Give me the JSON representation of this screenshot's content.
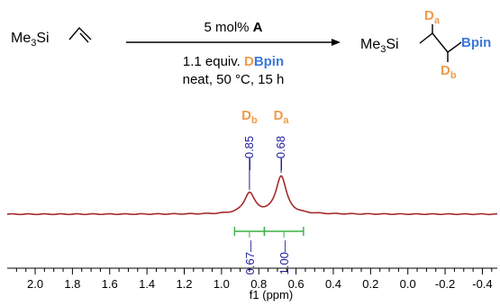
{
  "reaction": {
    "reactant": {
      "pre": "Me",
      "sub": "3",
      "post": "Si"
    },
    "conditions": {
      "line1_prefix": "5 mol% ",
      "line1_catalyst": "A",
      "line2_prefix": "1.1 equiv. ",
      "line2_d": "D",
      "line2_bpin": "Bpin",
      "line3": "neat, 50 °C, 15 h"
    },
    "product": {
      "pre": "Me",
      "sub": "3",
      "post": "Si",
      "bpin": "Bpin",
      "da_main": "D",
      "da_sub": "a",
      "db_main": "D",
      "db_sub": "b"
    }
  },
  "chart_data": {
    "type": "line",
    "title": "",
    "xlabel": "f1 (ppm)",
    "ylabel": "",
    "xlim": [
      2.15,
      -0.48
    ],
    "x_ticks": [
      "2.0",
      "1.8",
      "1.6",
      "1.4",
      "1.2",
      "1.0",
      "0.8",
      "0.6",
      "0.4",
      "0.2",
      "0.0",
      "-0.2",
      "-0.4"
    ],
    "peaks": [
      {
        "shift": 0.85,
        "shift_label": "0.85",
        "label_main": "D",
        "label_sub": "b",
        "height": 0.55,
        "width": 0.05
      },
      {
        "shift": 0.68,
        "shift_label": "0.68",
        "label_main": "D",
        "label_sub": "a",
        "height": 1.0,
        "width": 0.05
      }
    ],
    "integrals": [
      {
        "from": 0.93,
        "to": 0.77,
        "label": "0.67"
      },
      {
        "from": 0.77,
        "to": 0.56,
        "label": "1.00"
      }
    ],
    "colors": {
      "spectrum": "#a52a2a",
      "peak_label": "#1f1f9e",
      "integral_line": "#3cb043",
      "accent_orange": "#f09a4a",
      "accent_blue": "#3b78d8",
      "text": "#000000"
    }
  }
}
